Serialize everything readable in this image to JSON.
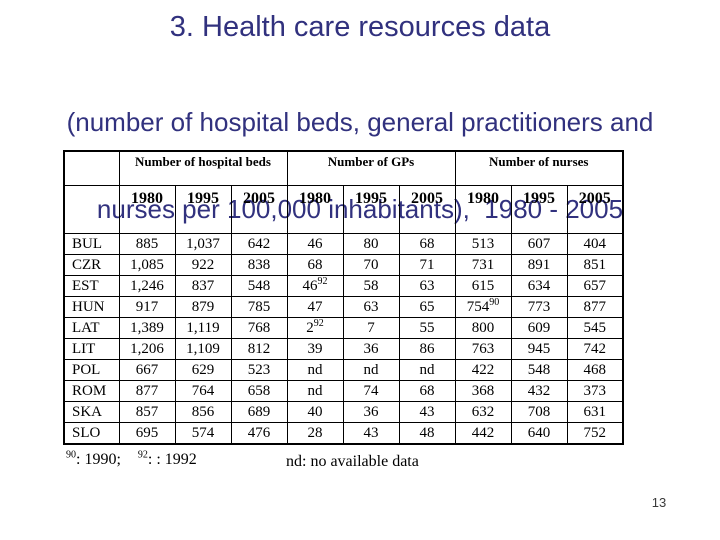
{
  "slide": {
    "title": "3. Health care resources data",
    "subtitle_line1": "(number of hospital beds, general practitioners and",
    "subtitle_line2": "nurses per 100,000 inhabitants),  1980 - 2005",
    "title_color": "#31317e",
    "page_number": "13"
  },
  "table": {
    "group_headers": [
      "Number of hospital beds",
      "Number of GPs",
      "Number of nurses"
    ],
    "year_headers": [
      "1980",
      "1995",
      "2005"
    ],
    "rows": [
      {
        "code": "BUL",
        "cells": [
          "885",
          "1,037",
          "642",
          "46",
          "80",
          "68",
          "513",
          "607",
          "404"
        ]
      },
      {
        "code": "CZR",
        "cells": [
          "1,085",
          "922",
          "838",
          "68",
          "70",
          "71",
          "731",
          "891",
          "851"
        ]
      },
      {
        "code": "EST",
        "cells": [
          "1,246",
          "837",
          "548",
          "46^92",
          "58",
          "63",
          "615",
          "634",
          "657"
        ]
      },
      {
        "code": "HUN",
        "cells": [
          "917",
          "879",
          "785",
          "47",
          "63",
          "65",
          "754^90",
          "773",
          "877"
        ]
      },
      {
        "code": "LAT",
        "cells": [
          "1,389",
          "1,119",
          "768",
          "2^92",
          "7",
          "55",
          "800",
          "609",
          "545"
        ]
      },
      {
        "code": "LIT",
        "cells": [
          "1,206",
          "1,109",
          "812",
          "39",
          "36",
          "86",
          "763",
          "945",
          "742"
        ]
      },
      {
        "code": "POL",
        "cells": [
          "667",
          "629",
          "523",
          "nd",
          "nd",
          "nd",
          "422",
          "548",
          "468"
        ]
      },
      {
        "code": "ROM",
        "cells": [
          "877",
          "764",
          "658",
          "nd",
          "74",
          "68",
          "368",
          "432",
          "373"
        ]
      },
      {
        "code": "SKA",
        "cells": [
          "857",
          "856",
          "689",
          "40",
          "36",
          "43",
          "632",
          "708",
          "631"
        ]
      },
      {
        "code": "SLO",
        "cells": [
          "695",
          "574",
          "476",
          "28",
          "43",
          "48",
          "442",
          "640",
          "752"
        ]
      }
    ]
  },
  "footnote": {
    "sup1": "90",
    "text1": ": 1990;",
    "sup2": "92",
    "text2": ": : 1992",
    "nd_note": "nd: no available data"
  }
}
